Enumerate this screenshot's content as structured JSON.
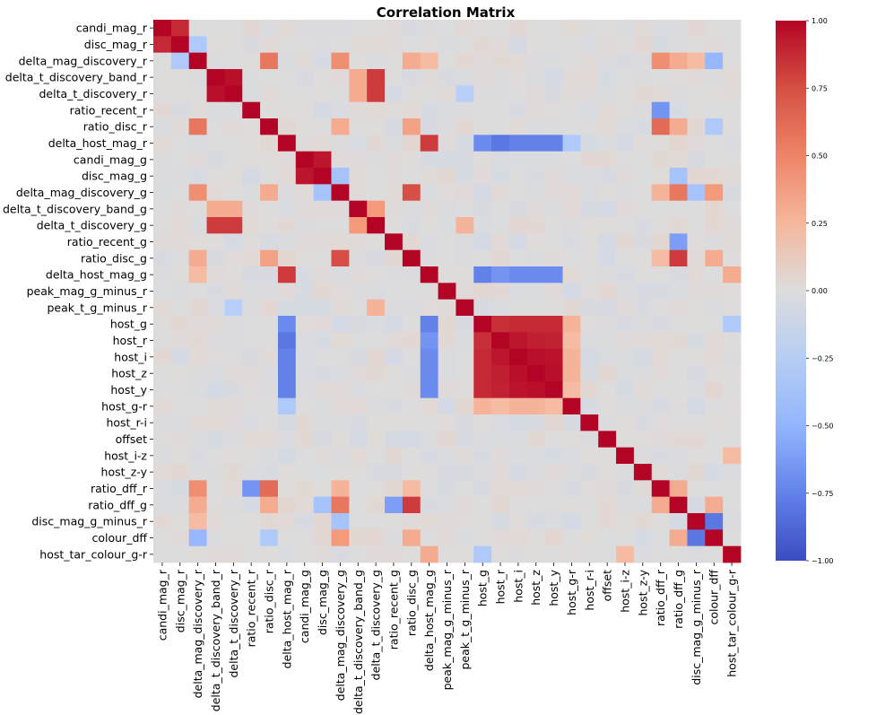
{
  "chart_data": {
    "type": "heatmap",
    "title": "Correlation Matrix",
    "xlabel": "",
    "ylabel": "",
    "labels": [
      "candi_mag_r",
      "disc_mag_r",
      "delta_mag_discovery_r",
      "delta_t_discovery_band_r",
      "delta_t_discovery_r",
      "ratio_recent_r",
      "ratio_disc_r",
      "delta_host_mag_r",
      "candi_mag_g",
      "disc_mag_g",
      "delta_mag_discovery_g",
      "delta_t_discovery_band_g",
      "delta_t_discovery_g",
      "ratio_recent_g",
      "ratio_disc_g",
      "delta_host_mag_g",
      "peak_mag_g_minus_r",
      "peak_t_g_minus_r",
      "host_g",
      "host_r",
      "host_i",
      "host_z",
      "host_y",
      "host_g-r",
      "host_r-i",
      "offset",
      "host_i-z",
      "host_z-y",
      "ratio_dff_r",
      "ratio_dff_g",
      "disc_mag_g_minus_r",
      "colour_dff",
      "host_tar_colour_g-r"
    ],
    "colorbar": {
      "range": [
        -1.0,
        1.0
      ],
      "ticks": [
        1.0,
        0.75,
        0.5,
        0.25,
        0.0,
        -0.25,
        -0.5,
        -0.75,
        -1.0
      ],
      "tick_labels": [
        "1.00",
        "0.75",
        "0.50",
        "0.25",
        "0.00",
        "−0.25",
        "−0.50",
        "−0.75",
        "−1.00"
      ],
      "colormap": "coolwarm"
    },
    "strong_correlations": [
      {
        "a": 0,
        "b": 1,
        "value": 0.9
      },
      {
        "a": 1,
        "b": 2,
        "value": -0.3
      },
      {
        "a": 2,
        "b": 6,
        "value": 0.65
      },
      {
        "a": 2,
        "b": 10,
        "value": 0.55
      },
      {
        "a": 2,
        "b": 14,
        "value": 0.4
      },
      {
        "a": 2,
        "b": 15,
        "value": 0.3
      },
      {
        "a": 2,
        "b": 28,
        "value": 0.55
      },
      {
        "a": 2,
        "b": 29,
        "value": 0.4
      },
      {
        "a": 2,
        "b": 30,
        "value": 0.3
      },
      {
        "a": 2,
        "b": 31,
        "value": -0.45
      },
      {
        "a": 3,
        "b": 4,
        "value": 0.97
      },
      {
        "a": 3,
        "b": 11,
        "value": 0.4
      },
      {
        "a": 3,
        "b": 12,
        "value": 0.85
      },
      {
        "a": 4,
        "b": 11,
        "value": 0.4
      },
      {
        "a": 4,
        "b": 12,
        "value": 0.85
      },
      {
        "a": 4,
        "b": 17,
        "value": -0.25
      },
      {
        "a": 5,
        "b": 28,
        "value": -0.65
      },
      {
        "a": 6,
        "b": 10,
        "value": 0.4
      },
      {
        "a": 6,
        "b": 14,
        "value": 0.45
      },
      {
        "a": 6,
        "b": 28,
        "value": 0.7
      },
      {
        "a": 6,
        "b": 29,
        "value": 0.4
      },
      {
        "a": 6,
        "b": 31,
        "value": -0.3
      },
      {
        "a": 7,
        "b": 15,
        "value": 0.85
      },
      {
        "a": 7,
        "b": 18,
        "value": -0.7
      },
      {
        "a": 7,
        "b": 19,
        "value": -0.8
      },
      {
        "a": 7,
        "b": 20,
        "value": -0.75
      },
      {
        "a": 7,
        "b": 21,
        "value": -0.75
      },
      {
        "a": 7,
        "b": 22,
        "value": -0.75
      },
      {
        "a": 7,
        "b": 23,
        "value": -0.3
      },
      {
        "a": 8,
        "b": 9,
        "value": 0.95
      },
      {
        "a": 9,
        "b": 10,
        "value": -0.35
      },
      {
        "a": 9,
        "b": 29,
        "value": -0.35
      },
      {
        "a": 10,
        "b": 14,
        "value": 0.8
      },
      {
        "a": 10,
        "b": 28,
        "value": 0.35
      },
      {
        "a": 10,
        "b": 29,
        "value": 0.65
      },
      {
        "a": 10,
        "b": 30,
        "value": -0.35
      },
      {
        "a": 10,
        "b": 31,
        "value": 0.5
      },
      {
        "a": 11,
        "b": 12,
        "value": 0.5
      },
      {
        "a": 12,
        "b": 17,
        "value": 0.35
      },
      {
        "a": 13,
        "b": 29,
        "value": -0.6
      },
      {
        "a": 14,
        "b": 28,
        "value": 0.3
      },
      {
        "a": 14,
        "b": 29,
        "value": 0.85
      },
      {
        "a": 14,
        "b": 31,
        "value": 0.4
      },
      {
        "a": 15,
        "b": 18,
        "value": -0.75
      },
      {
        "a": 15,
        "b": 19,
        "value": -0.65
      },
      {
        "a": 15,
        "b": 20,
        "value": -0.7
      },
      {
        "a": 15,
        "b": 21,
        "value": -0.7
      },
      {
        "a": 15,
        "b": 22,
        "value": -0.7
      },
      {
        "a": 15,
        "b": 32,
        "value": 0.4
      },
      {
        "a": 18,
        "b": 19,
        "value": 0.88
      },
      {
        "a": 18,
        "b": 20,
        "value": 0.9
      },
      {
        "a": 18,
        "b": 21,
        "value": 0.9
      },
      {
        "a": 18,
        "b": 22,
        "value": 0.9
      },
      {
        "a": 19,
        "b": 20,
        "value": 0.95
      },
      {
        "a": 19,
        "b": 21,
        "value": 0.93
      },
      {
        "a": 19,
        "b": 22,
        "value": 0.92
      },
      {
        "a": 20,
        "b": 21,
        "value": 0.97
      },
      {
        "a": 20,
        "b": 22,
        "value": 0.96
      },
      {
        "a": 21,
        "b": 22,
        "value": 0.97
      },
      {
        "a": 18,
        "b": 23,
        "value": 0.35
      },
      {
        "a": 19,
        "b": 23,
        "value": 0.3
      },
      {
        "a": 20,
        "b": 23,
        "value": 0.35
      },
      {
        "a": 21,
        "b": 23,
        "value": 0.35
      },
      {
        "a": 22,
        "b": 23,
        "value": 0.3
      },
      {
        "a": 18,
        "b": 32,
        "value": -0.3
      },
      {
        "a": 30,
        "b": 31,
        "value": -0.8
      },
      {
        "a": 28,
        "b": 29,
        "value": 0.4
      },
      {
        "a": 29,
        "b": 31,
        "value": 0.4
      },
      {
        "a": 26,
        "b": 32,
        "value": 0.3
      }
    ]
  }
}
